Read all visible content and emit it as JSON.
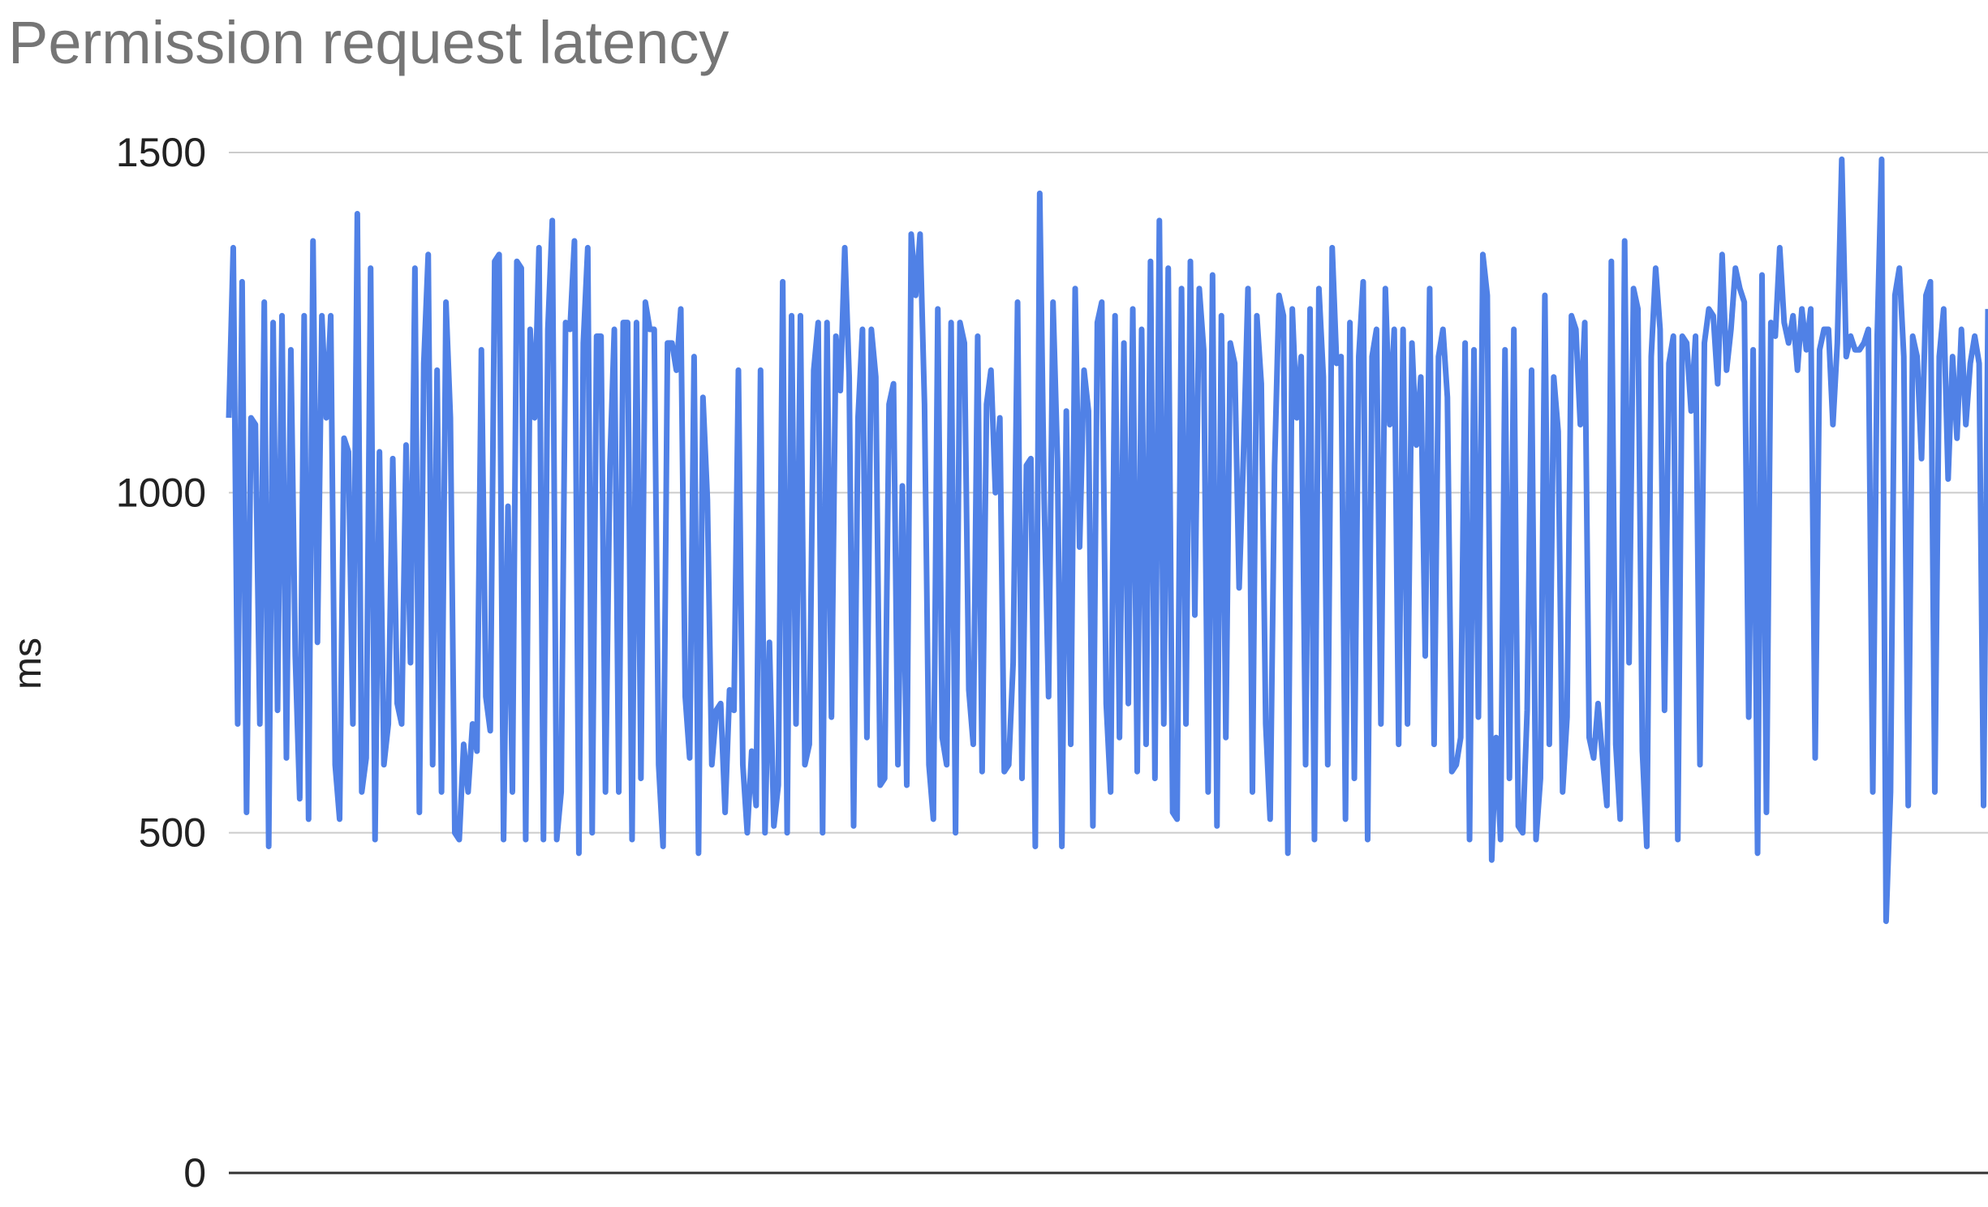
{
  "chart_data": {
    "type": "line",
    "title": "Permission request latency",
    "xlabel": "",
    "ylabel": "ms",
    "ylim": [
      0,
      1500
    ],
    "yticks": [
      0,
      500,
      1000,
      1500
    ],
    "grid": true,
    "legend": "none",
    "series": [
      {
        "color": "#5081e6",
        "values": [
          1110,
          1360,
          660,
          1310,
          530,
          1110,
          1100,
          660,
          1280,
          480,
          1250,
          680,
          1260,
          610,
          1210,
          760,
          550,
          1260,
          520,
          1370,
          780,
          1260,
          1110,
          1260,
          600,
          520,
          1080,
          1060,
          660,
          1410,
          560,
          610,
          1330,
          490,
          1060,
          600,
          660,
          1050,
          690,
          660,
          1070,
          750,
          1330,
          530,
          1190,
          1350,
          600,
          1180,
          560,
          1280,
          1110,
          500,
          490,
          630,
          560,
          660,
          620,
          1210,
          700,
          650,
          1340,
          1350,
          490,
          980,
          560,
          1340,
          1330,
          490,
          1240,
          1110,
          1360,
          490,
          1240,
          1400,
          490,
          560,
          1250,
          1240,
          1370,
          470,
          1220,
          1360,
          500,
          1230,
          1230,
          560,
          1040,
          1240,
          560,
          1250,
          1250,
          490,
          1250,
          580,
          1280,
          1240,
          1240,
          600,
          480,
          1220,
          1220,
          1180,
          1270,
          700,
          610,
          1200,
          470,
          1140,
          990,
          600,
          680,
          690,
          530,
          710,
          680,
          1180,
          600,
          500,
          620,
          540,
          1180,
          500,
          780,
          510,
          570,
          1310,
          500,
          1260,
          660,
          1260,
          600,
          630,
          1180,
          1250,
          500,
          1250,
          670,
          1230,
          1150,
          1360,
          1170,
          510,
          1110,
          1240,
          640,
          1240,
          1170,
          570,
          580,
          1130,
          1160,
          600,
          1010,
          570,
          1380,
          1290,
          1380,
          1130,
          600,
          520,
          1270,
          640,
          600,
          1250,
          500,
          1250,
          1220,
          710,
          630,
          1230,
          590,
          1130,
          1180,
          1000,
          1110,
          590,
          600,
          750,
          1280,
          580,
          1040,
          1050,
          480,
          1440,
          990,
          700,
          1280,
          1050,
          480,
          1120,
          630,
          1300,
          920,
          1180,
          1120,
          510,
          1250,
          1280,
          690,
          560,
          1260,
          640,
          1220,
          690,
          1270,
          590,
          1240,
          630,
          1340,
          580,
          1400,
          660,
          1330,
          530,
          520,
          1300,
          660,
          1340,
          820,
          1300,
          1210,
          560,
          1320,
          510,
          1260,
          640,
          1220,
          1190,
          860,
          1060,
          1300,
          560,
          1260,
          1160,
          660,
          520,
          1040,
          1290,
          1260,
          470,
          1270,
          1110,
          1200,
          600,
          1270,
          490,
          1300,
          1170,
          600,
          1360,
          1190,
          1200,
          520,
          1250,
          580,
          1200,
          1310,
          490,
          1200,
          1240,
          660,
          1300,
          1100,
          1240,
          630,
          1240,
          660,
          1220,
          1070,
          1170,
          760,
          1300,
          630,
          1200,
          1240,
          1140,
          590,
          600,
          640,
          1220,
          490,
          1210,
          670,
          1350,
          1290,
          460,
          640,
          490,
          1210,
          580,
          1240,
          510,
          500,
          680,
          1180,
          490,
          580,
          1290,
          630,
          1170,
          1090,
          560,
          670,
          1260,
          1240,
          1100,
          1250,
          640,
          610,
          690,
          610,
          540,
          1340,
          630,
          520,
          1370,
          750,
          1300,
          1270,
          620,
          480,
          1200,
          1330,
          1240,
          680,
          1190,
          1230,
          490,
          1230,
          1220,
          1120,
          1230,
          600,
          1220,
          1270,
          1260,
          1160,
          1350,
          1180,
          1240,
          1330,
          1300,
          1280,
          670,
          1210,
          470,
          1320,
          530,
          1250,
          1230,
          1360,
          1250,
          1220,
          1260,
          1180,
          1270,
          1210,
          1270,
          610,
          1210,
          1240,
          1240,
          1100,
          1220,
          1490,
          1200,
          1230,
          1210,
          1210,
          1220,
          1240,
          560,
          1230,
          1490,
          370,
          560,
          1290,
          1330,
          1200,
          540,
          1230,
          1200,
          1050,
          1290,
          1310,
          560,
          1200,
          1270,
          1020,
          1200,
          1080,
          1240,
          1100,
          1190,
          1230,
          1190,
          540,
          1270
        ]
      }
    ]
  }
}
